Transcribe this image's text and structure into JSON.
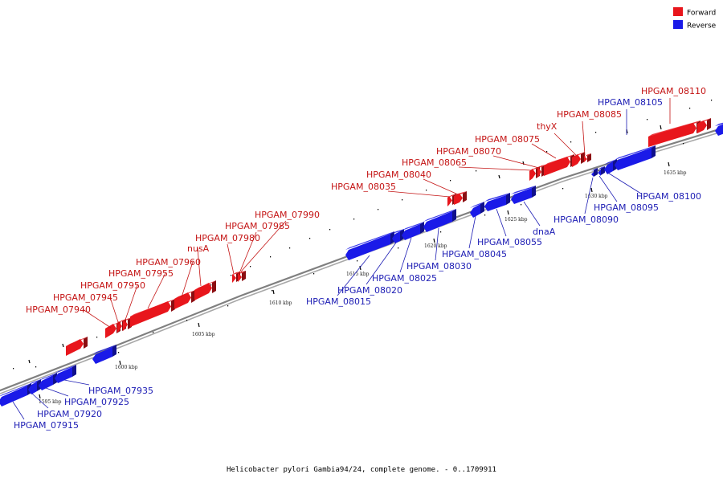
{
  "colors": {
    "forward": "#e8161c",
    "reverse": "#1a1ae8",
    "forward_label": "#c41414",
    "reverse_label": "#1c1cb4",
    "backbone": "#808080"
  },
  "legend": {
    "forward_label": "Forward",
    "reverse_label": "Reverse"
  },
  "caption": "Helicobacter pylori Gambia94/24, complete genome. - 0..1709911",
  "scale_labels": [
    "1595 kbp",
    "1600 kbp",
    "1605 kbp",
    "1610 kbp",
    "1615 kbp",
    "1620 kbp",
    "1625 kbp",
    "1630 kbp",
    "1635 kbp"
  ],
  "forward_genes": [
    "HPGAM_07940",
    "HPGAM_07945",
    "HPGAM_07950",
    "HPGAM_07955",
    "HPGAM_07960",
    "nusA",
    "HPGAM_07980",
    "HPGAM_07985",
    "HPGAM_07990",
    "HPGAM_08035",
    "HPGAM_08040",
    "HPGAM_08065",
    "HPGAM_08070",
    "HPGAM_08075",
    "thyX",
    "HPGAM_08085",
    "HPGAM_08110"
  ],
  "reverse_genes": [
    "HPGAM_07915",
    "HPGAM_07920",
    "HPGAM_07925",
    "HPGAM_07935",
    "HPGAM_08015",
    "HPGAM_08020",
    "HPGAM_08025",
    "HPGAM_08030",
    "HPGAM_08045",
    "HPGAM_08055",
    "dnaA",
    "HPGAM_08090",
    "HPGAM_08095",
    "HPGAM_08100",
    "HPGAM_08105"
  ]
}
